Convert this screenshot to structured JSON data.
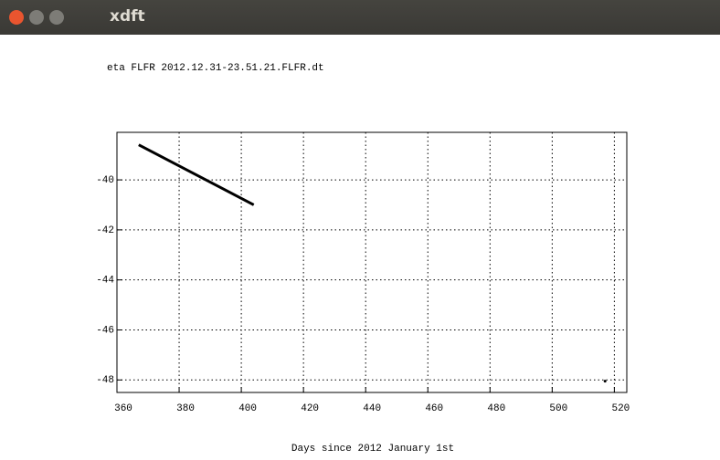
{
  "window": {
    "title": "xdft"
  },
  "chart_data": {
    "type": "line",
    "title": "eta FLFR 2012.12.31-23.51.21.FLFR.dt",
    "x_label": "Days since 2012 January 1st",
    "series": [
      {
        "x": [
          367,
          404
        ],
        "values": [
          -38.6,
          -41.0
        ],
        "color": "#000000"
      },
      {
        "x": [
          517
        ],
        "values": [
          -48.05
        ],
        "color": "#000000"
      }
    ],
    "xlim": [
      360,
      524
    ],
    "xticks": [
      360,
      380,
      400,
      420,
      440,
      460,
      480,
      500,
      520
    ],
    "ylim": [
      -48.5,
      -38.1
    ],
    "yticks": [
      -40,
      -42,
      -44,
      -46,
      -48
    ],
    "grid": true
  }
}
